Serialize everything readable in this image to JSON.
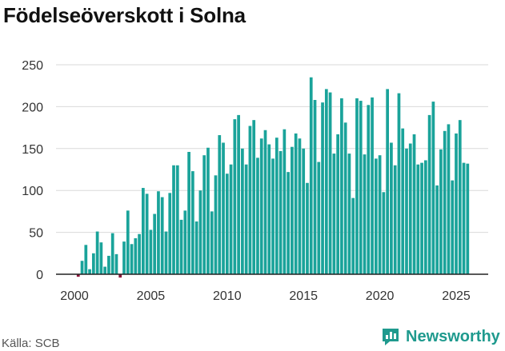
{
  "chart_data": {
    "type": "bar",
    "title": "Födelseöverskott i Solna",
    "xlabel": "",
    "ylabel": "",
    "ylim": [
      -5,
      250
    ],
    "yticks": [
      0,
      50,
      100,
      150,
      200,
      250
    ],
    "xticks": [
      2000,
      2005,
      2010,
      2015,
      2020,
      2025
    ],
    "x_start": 2000,
    "x_step": 0.25,
    "colors": {
      "positive": "#1aa39a",
      "negative": "#8b1438"
    },
    "values": [
      null,
      -3,
      16,
      35,
      6,
      25,
      51,
      38,
      9,
      22,
      49,
      24,
      -4,
      39,
      76,
      36,
      43,
      48,
      103,
      96,
      53,
      72,
      99,
      92,
      51,
      97,
      130,
      130,
      65,
      76,
      146,
      123,
      63,
      100,
      142,
      151,
      75,
      118,
      166,
      157,
      120,
      131,
      185,
      190,
      150,
      131,
      177,
      184,
      139,
      162,
      172,
      155,
      138,
      163,
      147,
      173,
      122,
      152,
      168,
      162,
      150,
      109,
      235,
      208,
      134,
      205,
      221,
      217,
      144,
      167,
      210,
      181,
      144,
      91,
      210,
      207,
      143,
      202,
      211,
      138,
      142,
      98,
      221,
      157,
      130,
      216,
      174,
      150,
      156,
      167,
      131,
      133,
      136,
      190,
      206,
      106,
      149,
      171,
      179,
      112,
      168,
      184,
      133,
      132
    ]
  },
  "source": "Källa: SCB",
  "brand": {
    "name": "Newsworthy",
    "color": "#1f9a8e"
  }
}
